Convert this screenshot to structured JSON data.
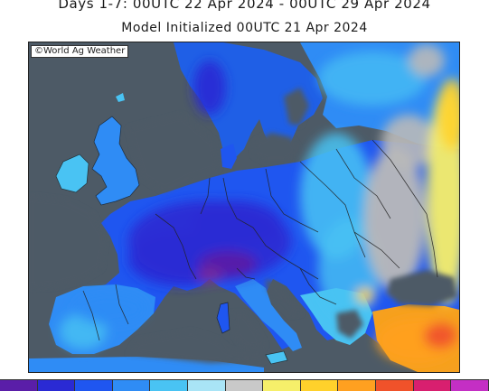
{
  "header": {
    "line1": "Days 1-7: 00UTC 22 Apr 2024 - 00UTC 29 Apr 2024",
    "line2": "Model Initialized 00UTC 21 Apr 2024"
  },
  "map": {
    "watermark": "©World Ag Weather",
    "colors": {
      "sea": "#4d5a66",
      "land_neutral": "#b9b9b9",
      "border": "#222222"
    }
  },
  "colorbar": {
    "colors": [
      "#5a1ea8",
      "#2a2ad4",
      "#1f56f0",
      "#2f8cf5",
      "#49c3f3",
      "#a9e4f6",
      "#c9c9c9",
      "#f6ef6a",
      "#ffd12b",
      "#ffa020",
      "#f0522a",
      "#d81f6f",
      "#c42fc4"
    ]
  }
}
